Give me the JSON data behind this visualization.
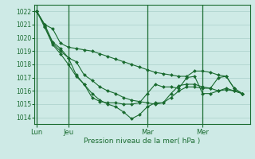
{
  "bg_color": "#ceeae6",
  "grid_color": "#aacfca",
  "line_color": "#1a6b30",
  "marker_color": "#1a6b30",
  "title": "Pression niveau de la mer( hPa )",
  "x_tick_labels": [
    "Lun",
    "Jeu",
    "Mar",
    "Mer"
  ],
  "x_tick_positions": [
    0,
    4,
    14,
    21
  ],
  "xlim": [
    -0.3,
    27.0
  ],
  "ylim": [
    1013.5,
    1022.5
  ],
  "yticks": [
    1014,
    1015,
    1016,
    1017,
    1018,
    1019,
    1020,
    1021,
    1022
  ],
  "series1": [
    1022.0,
    1021.0,
    1020.7,
    1019.6,
    1019.3,
    1019.2,
    1019.1,
    1019.0,
    1018.8,
    1018.6,
    1018.4,
    1018.2,
    1018.0,
    1017.8,
    1017.6,
    1017.4,
    1017.3,
    1017.2,
    1017.1,
    1017.1,
    1017.5,
    1017.5,
    1017.4,
    1017.2,
    1017.1,
    1016.2,
    1015.8
  ],
  "series2": [
    1022.0,
    1021.0,
    1019.7,
    1019.2,
    1018.5,
    1018.2,
    1017.2,
    1016.8,
    1016.3,
    1016.0,
    1015.8,
    1015.5,
    1015.3,
    1015.2,
    1015.1,
    1015.0,
    1015.1,
    1015.8,
    1016.4,
    1016.5,
    1016.5,
    1016.3,
    1016.2,
    1016.0,
    1016.1,
    1016.0,
    1015.8
  ],
  "series3": [
    1022.0,
    1020.9,
    1019.6,
    1019.0,
    1018.5,
    1017.2,
    1016.5,
    1015.5,
    1015.2,
    1015.1,
    1015.1,
    1015.0,
    1015.0,
    1015.1,
    1015.8,
    1016.5,
    1016.3,
    1016.3,
    1016.2,
    1017.0,
    1017.1,
    1015.8,
    1015.8,
    1016.0,
    1016.2,
    1016.0,
    1015.8
  ],
  "series4": [
    1022.0,
    1020.8,
    1019.5,
    1018.8,
    1018.0,
    1017.1,
    1016.5,
    1015.8,
    1015.3,
    1015.0,
    1014.8,
    1014.4,
    1013.9,
    1014.2,
    1014.8,
    1015.1,
    1015.1,
    1015.5,
    1016.0,
    1016.3,
    1016.3,
    1016.2,
    1016.2,
    1017.0,
    1017.1,
    1016.2,
    1015.8
  ],
  "x_values": [
    0,
    1,
    2,
    3,
    4,
    5,
    6,
    7,
    8,
    9,
    10,
    11,
    12,
    13,
    14,
    15,
    16,
    17,
    18,
    19,
    20,
    21,
    22,
    23,
    24,
    25,
    26
  ]
}
